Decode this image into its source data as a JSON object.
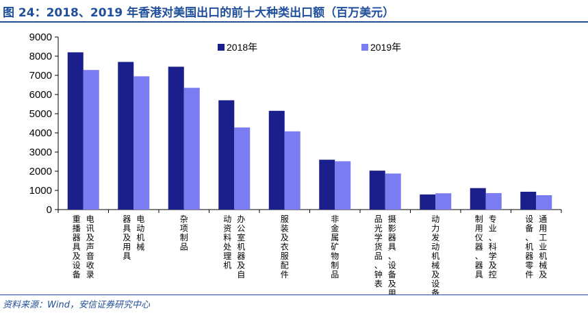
{
  "header": {
    "title": "图 24：2018、2019 年香港对美国出口的前十大种类出口额（百万美元）"
  },
  "footer": {
    "source": "资料来源：Wind，安信证券研究中心"
  },
  "colors": {
    "series_2018": "#1a1f8c",
    "series_2019": "#7b7bf2",
    "title": "#1f4e9a"
  },
  "chart_data": {
    "type": "bar",
    "title": "",
    "xlabel": "",
    "ylabel": "",
    "ylim": [
      0,
      9000
    ],
    "yticks": [
      0,
      1000,
      2000,
      3000,
      4000,
      5000,
      6000,
      7000,
      8000,
      9000
    ],
    "grid": false,
    "legend": "top",
    "categories": [
      [
        "电讯及声音收录",
        "重播器具及设备"
      ],
      [
        "电动机械",
        "器具及用具"
      ],
      [
        "杂项制品"
      ],
      [
        "办公室机器及自",
        "动资料处理机"
      ],
      [
        "服装及衣服配件"
      ],
      [
        "非金属矿物制品"
      ],
      [
        "摄影器具、设备及用",
        "品光学货品、钟表"
      ],
      [
        "动力发动机械及设备"
      ],
      [
        "专业、科学及控",
        "制用仪器、器具"
      ],
      [
        "通用工业机械及",
        "设备、机器零件"
      ]
    ],
    "series": [
      {
        "name": "2018年",
        "values": [
          8200,
          7700,
          7450,
          5700,
          5150,
          2600,
          2030,
          790,
          1120,
          930
        ]
      },
      {
        "name": "2019年",
        "values": [
          7280,
          6950,
          6350,
          4280,
          4080,
          2520,
          1880,
          850,
          860,
          750
        ]
      }
    ]
  }
}
